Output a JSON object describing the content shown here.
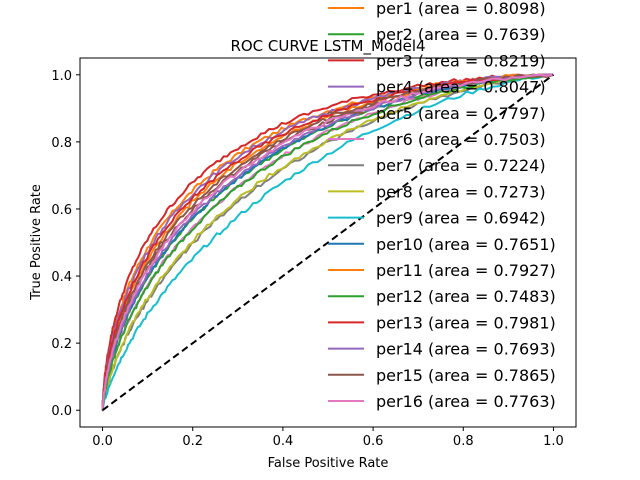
{
  "chart_data": {
    "type": "line",
    "title": "ROC CURVE LSTM_Model4",
    "xlabel": "False Positive Rate",
    "ylabel": "True Positive Rate",
    "xlim": [
      -0.05,
      1.05
    ],
    "ylim": [
      -0.05,
      1.05
    ],
    "xticks": [
      0.0,
      0.2,
      0.4,
      0.6,
      0.8,
      1.0
    ],
    "yticks": [
      0.0,
      0.2,
      0.4,
      0.6,
      0.8,
      1.0
    ],
    "xtick_labels": [
      "0.0",
      "0.2",
      "0.4",
      "0.6",
      "0.8",
      "1.0"
    ],
    "ytick_labels": [
      "0.0",
      "0.2",
      "0.4",
      "0.6",
      "0.8",
      "1.0"
    ],
    "grid": false,
    "legend_position": "upper right",
    "reference_line": {
      "x": [
        0,
        1
      ],
      "y": [
        0,
        1
      ],
      "color": "#000000",
      "style": "dashed"
    },
    "series": [
      {
        "name": "per1 (area = 0.8098)",
        "auc": 0.8098,
        "color": "#ff7f0e"
      },
      {
        "name": "per2 (area = 0.7639)",
        "auc": 0.7639,
        "color": "#2ca02c"
      },
      {
        "name": "per3 (area = 0.8219)",
        "auc": 0.8219,
        "color": "#d62728"
      },
      {
        "name": "per4 (area = 0.8047)",
        "auc": 0.8047,
        "color": "#9467bd"
      },
      {
        "name": "per5 (area = 0.7797)",
        "auc": 0.7797,
        "color": "#8c564b"
      },
      {
        "name": "per6 (area = 0.7503)",
        "auc": 0.7503,
        "color": "#e377c2"
      },
      {
        "name": "per7 (area = 0.7224)",
        "auc": 0.7224,
        "color": "#7f7f7f"
      },
      {
        "name": "per8 (area = 0.7273)",
        "auc": 0.7273,
        "color": "#bcbd22"
      },
      {
        "name": "per9 (area = 0.6942)",
        "auc": 0.6942,
        "color": "#17becf"
      },
      {
        "name": "per10 (area = 0.7651)",
        "auc": 0.7651,
        "color": "#1f77b4"
      },
      {
        "name": "per11 (area = 0.7927)",
        "auc": 0.7927,
        "color": "#ff7f0e"
      },
      {
        "name": "per12 (area = 0.7483)",
        "auc": 0.7483,
        "color": "#2ca02c"
      },
      {
        "name": "per13 (area = 0.7981)",
        "auc": 0.7981,
        "color": "#d62728"
      },
      {
        "name": "per14 (area = 0.7693)",
        "auc": 0.7693,
        "color": "#9467bd"
      },
      {
        "name": "per15 (area = 0.7865)",
        "auc": 0.7865,
        "color": "#8c564b"
      },
      {
        "name": "per16 (area = 0.7763)",
        "auc": 0.7763,
        "color": "#e377c2"
      }
    ]
  }
}
